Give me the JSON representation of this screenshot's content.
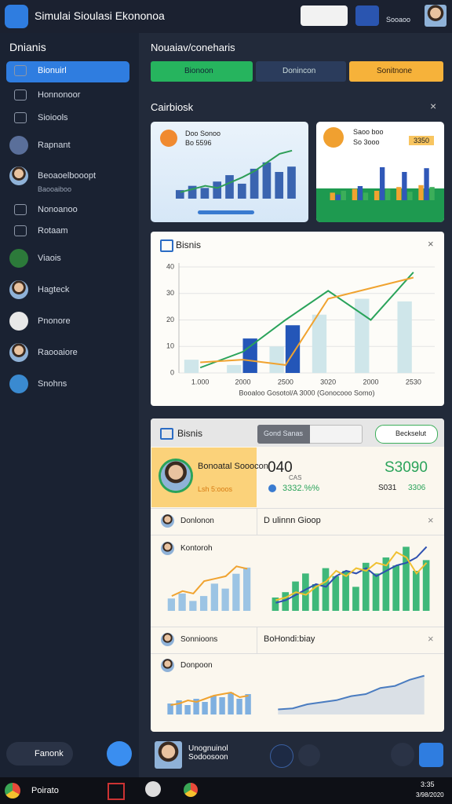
{
  "header": {
    "title": "Simulai Sioulasi Ekononoa",
    "user": "Sooaoo"
  },
  "sidebar": {
    "title": "Dnianis",
    "items": [
      "Bionuirl",
      "Honnonoor",
      "Sioiools",
      "Rapnant",
      "Beoaoelbooopt",
      "Nonoanoo",
      "Rotaam",
      "Viaois",
      "Hagteck",
      "Pnonore",
      "Raooaiore",
      "Snohns"
    ],
    "profile_sub": "Baooaiboo",
    "footer": "Fanonk"
  },
  "main": {
    "title": "Nouaiav/coneharis",
    "tabs": [
      "Bionoon",
      "Donincon",
      "Sonitnone"
    ],
    "section": "Cairbiosk"
  },
  "cards": [
    {
      "title": "Doo Sonoo",
      "value": "Bo 5596"
    },
    {
      "title": "Saoo boo",
      "value": "So 3ooo",
      "badge": "3350"
    }
  ],
  "panel": {
    "title": "Bisnis",
    "dropdown": "Gond Sanas",
    "button": "Beckselut",
    "profile_name": "Bonoatal Sooocon",
    "profile_sub": "Lsh 5:ooos",
    "stat1": "040",
    "stat1_label": "CAS",
    "stat1_change": "3332.%%",
    "stat2": "S3090",
    "stat2_a": "S031",
    "stat2_b": "3306",
    "rows": [
      "Donlonon",
      "D ulinnn Gioop",
      "Kontoroh",
      "Sonnioons",
      "BoHondi:biay",
      "Donpoon"
    ]
  },
  "bottom": {
    "user": "Unognuinol Sodoosoon"
  },
  "taskbar": {
    "app": "Poirato",
    "time": "3:35",
    "date": "3/98/2020"
  },
  "chart_data": [
    {
      "type": "bar",
      "title": "Bisnis",
      "categories": [
        "1.000",
        "2000",
        "2500",
        "3020",
        "2000",
        "2530"
      ],
      "x_label": "Booaloo   Gosotol/A 3000   (Gonocooo Somo)",
      "ylim": [
        0,
        40
      ],
      "yticks": [
        0,
        10,
        20,
        30,
        40
      ],
      "grid": true,
      "series": [
        {
          "type": "bar",
          "color": "#cfe6ea",
          "values": [
            5,
            3,
            10,
            22,
            28,
            27
          ]
        },
        {
          "type": "bar",
          "color": "#2456b8",
          "values": [
            null,
            13,
            18,
            null,
            null,
            null
          ]
        },
        {
          "type": "line",
          "color": "#2aa35a",
          "values": [
            2,
            8,
            20,
            31,
            20,
            38
          ]
        },
        {
          "type": "line",
          "color": "#f0a330",
          "values": [
            4,
            5,
            3,
            28,
            32,
            36
          ]
        }
      ]
    },
    {
      "type": "bar",
      "ylim": [
        0,
        50
      ],
      "series": [
        {
          "type": "bar",
          "color": "#3a64b0",
          "values": [
            8,
            12,
            10,
            16,
            22,
            14,
            28,
            34,
            25,
            30
          ]
        },
        {
          "type": "line",
          "color": "#2e9e57",
          "values": [
            6,
            9,
            12,
            10,
            15,
            20,
            26,
            34,
            42,
            45
          ]
        }
      ]
    },
    {
      "type": "bar",
      "ylim": [
        0,
        50
      ],
      "series": [
        {
          "type": "bar",
          "color": "#f0a330",
          "values": [
            8,
            12,
            10,
            14,
            16
          ]
        },
        {
          "type": "bar",
          "color": "#3058b8",
          "values": [
            6,
            15,
            35,
            30,
            34
          ]
        },
        {
          "type": "bar",
          "color": "#3cae5a",
          "values": [
            10,
            8,
            12,
            9,
            14
          ]
        }
      ]
    },
    {
      "type": "bar",
      "ylim": [
        0,
        40
      ],
      "series": [
        {
          "type": "bar",
          "color": "#9cc4e4",
          "values": [
            10,
            14,
            8,
            12,
            22,
            18,
            30,
            35
          ]
        },
        {
          "type": "line",
          "color": "#f0a330",
          "values": [
            12,
            16,
            14,
            24,
            26,
            28,
            36,
            34
          ]
        }
      ]
    },
    {
      "type": "bar",
      "ylim": [
        0,
        50
      ],
      "series": [
        {
          "type": "bar",
          "color": "#3fb87a",
          "values": [
            10,
            14,
            22,
            28,
            20,
            32,
            26,
            30,
            18,
            36,
            28,
            40,
            34,
            48,
            30,
            38
          ]
        },
        {
          "type": "line",
          "color": "#2e4fb0",
          "values": [
            6,
            8,
            12,
            16,
            20,
            18,
            26,
            30,
            28,
            32,
            26,
            30,
            34,
            36,
            40,
            48
          ]
        },
        {
          "type": "line",
          "color": "#f0c030",
          "values": [
            8,
            10,
            14,
            12,
            18,
            22,
            30,
            26,
            32,
            30,
            36,
            34,
            44,
            40,
            28,
            36
          ]
        }
      ]
    },
    {
      "type": "bar",
      "ylim": [
        0,
        40
      ],
      "series": [
        {
          "type": "bar",
          "color": "#7fb0e0",
          "values": [
            14,
            18,
            12,
            20,
            16,
            24,
            22,
            28,
            20,
            26
          ]
        },
        {
          "type": "line",
          "color": "#f0a330",
          "values": [
            12,
            14,
            18,
            16,
            20,
            24,
            26,
            28,
            22,
            24
          ]
        }
      ]
    },
    {
      "type": "line",
      "ylim": [
        0,
        50
      ],
      "series": [
        {
          "type": "area",
          "color": "#4a7cc0",
          "values": [
            5,
            6,
            10,
            12,
            14,
            18,
            20,
            26,
            28,
            34,
            38
          ]
        }
      ]
    }
  ]
}
